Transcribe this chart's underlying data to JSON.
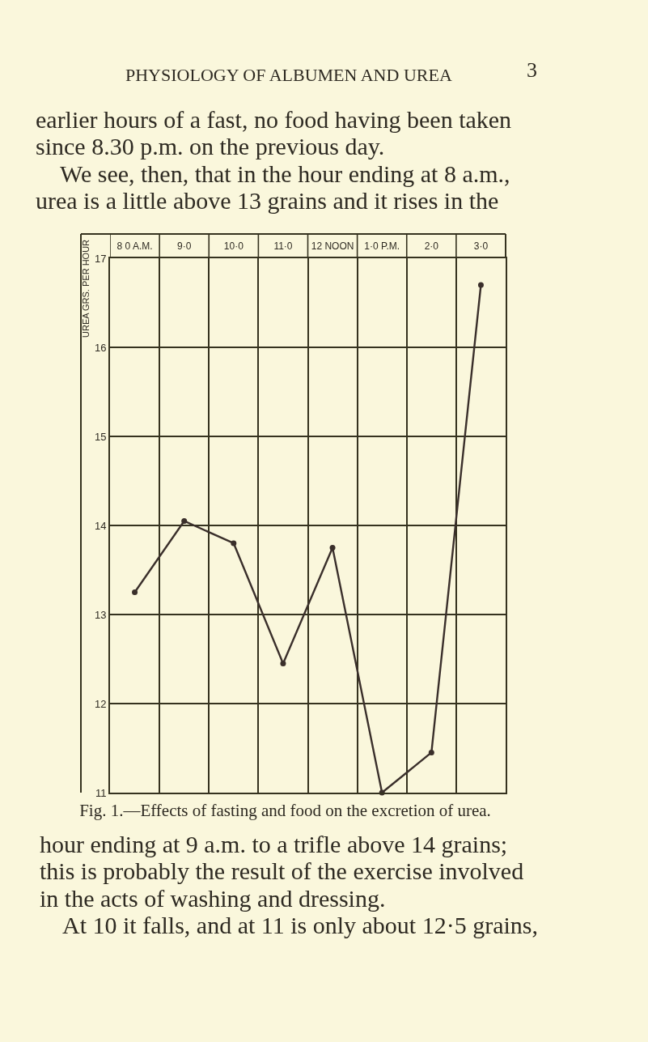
{
  "chart_data": {
    "type": "line",
    "title": "Fig. 1.—Effects of fasting and food on the excretion of urea.",
    "ylabel": "UREA GRS. PER HOUR",
    "annotations": [
      "PHYSIOLOGY OF ALBUMEN AND UREA",
      "3",
      "earlier hours of a fast, no food having been taken",
      "since 8.30 p.m. on the previous day.",
      "We see, then, that in the hour ending at 8 a.m.,",
      "urea is a little above 13 grains and it rises in the",
      "hour ending at 9 a.m. to a trifle above 14 grains;",
      "this is probably the result of the exercise involved",
      "in the acts of washing and dressing.",
      "At 10 it falls, and at 11 is only about 12·5 grains,"
    ],
    "categories": [
      "8 0 A.M.",
      "9·0",
      "10·0",
      "11·0",
      "12 NOON",
      "1·0 P.M.",
      "2·0",
      "3·0"
    ],
    "series": [
      {
        "color": "#3a2f2b",
        "values": [
          13.25,
          14.05,
          13.8,
          12.45,
          13.75,
          11.0,
          11.45,
          16.7
        ]
      }
    ],
    "ylim": [
      11,
      17
    ],
    "yticks": [
      11,
      12,
      13,
      14,
      15,
      16,
      17
    ],
    "grid": true,
    "marker": "circle",
    "line_style": "solid"
  }
}
